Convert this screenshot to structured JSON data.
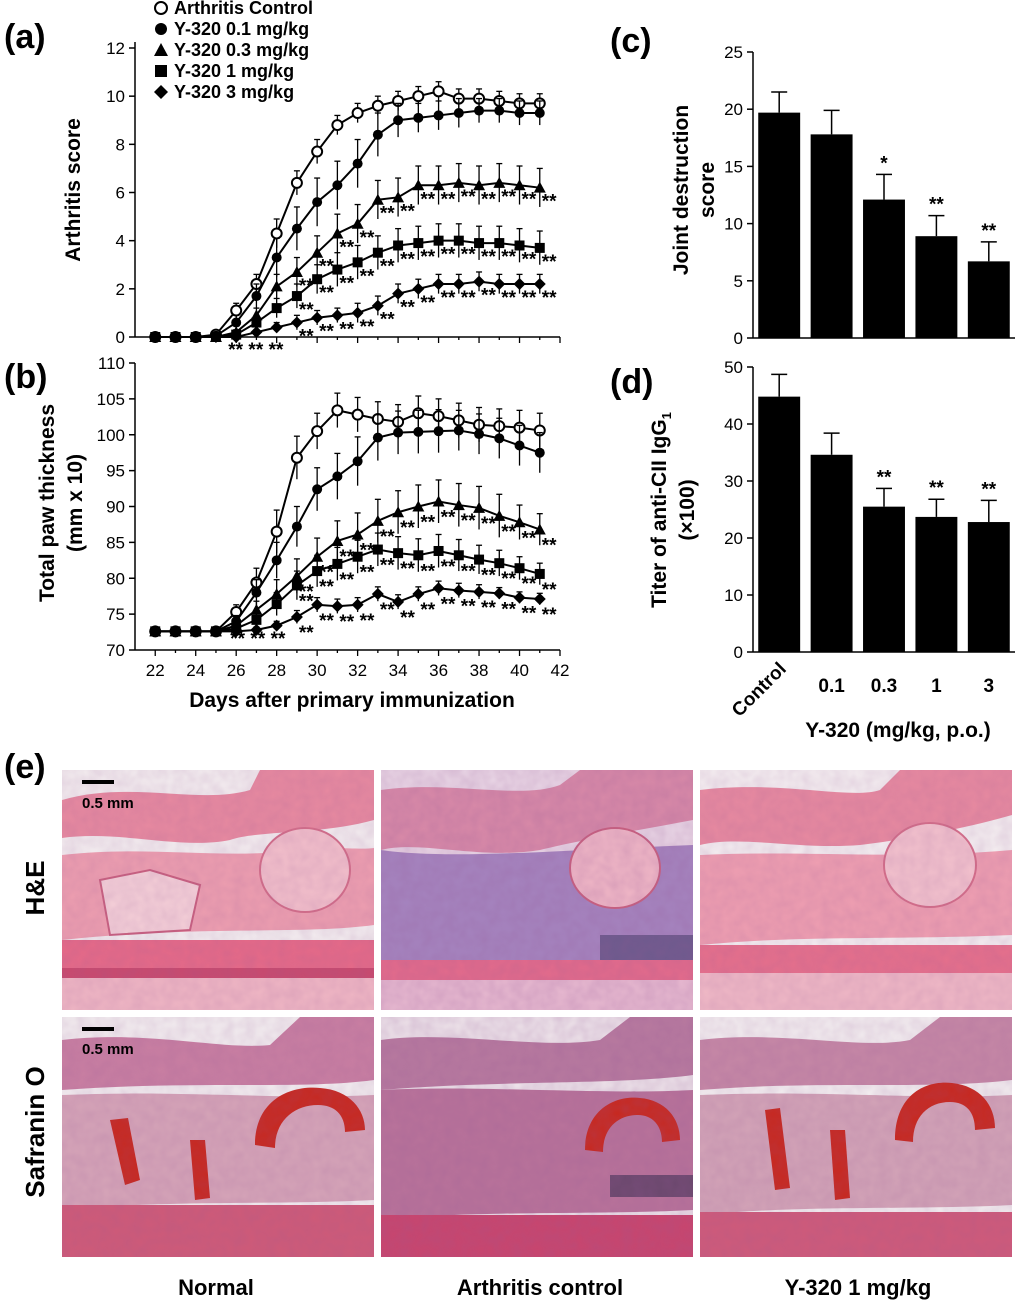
{
  "chart_data": [
    {
      "panel": "(a)",
      "type": "line",
      "ylabel": "Arthritis score",
      "xlabel": "",
      "xlim": [
        21,
        42
      ],
      "ylim": [
        0,
        12
      ],
      "yticks": [
        0,
        2,
        4,
        6,
        8,
        10,
        12
      ],
      "x": [
        22,
        23,
        24,
        25,
        26,
        27,
        28,
        29,
        30,
        31,
        32,
        33,
        34,
        35,
        36,
        37,
        38,
        39,
        40,
        41
      ],
      "series": [
        {
          "name": "Arthritis Control",
          "marker": "open-circle",
          "values": [
            0,
            0,
            0,
            0.1,
            1.1,
            2.2,
            4.3,
            6.4,
            7.7,
            8.8,
            9.3,
            9.6,
            9.8,
            10.0,
            10.2,
            9.9,
            9.9,
            9.8,
            9.7,
            9.7
          ],
          "errors": [
            0,
            0,
            0,
            0.1,
            0.3,
            0.4,
            0.6,
            0.5,
            0.5,
            0.4,
            0.4,
            0.4,
            0.4,
            0.4,
            0.4,
            0.4,
            0.4,
            0.4,
            0.4,
            0.4
          ]
        },
        {
          "name": "Y-320  0.1 mg/kg",
          "marker": "filled-circle",
          "values": [
            0,
            0,
            0,
            0.05,
            0.6,
            1.7,
            3.3,
            4.5,
            5.6,
            6.3,
            7.2,
            8.4,
            9.0,
            9.1,
            9.2,
            9.3,
            9.4,
            9.4,
            9.3,
            9.3
          ],
          "errors": [
            0,
            0,
            0,
            0.05,
            0.3,
            0.5,
            0.8,
            0.9,
            1.0,
            1.0,
            1.0,
            0.9,
            0.7,
            0.6,
            0.6,
            0.6,
            0.5,
            0.5,
            0.5,
            0.5
          ]
        },
        {
          "name": "Y-320  0.3 mg/kg",
          "marker": "filled-triangle",
          "values": [
            0,
            0,
            0,
            0,
            0.2,
            0.9,
            2.1,
            2.7,
            3.5,
            4.3,
            4.7,
            5.7,
            5.8,
            6.3,
            6.3,
            6.4,
            6.3,
            6.4,
            6.3,
            6.2
          ],
          "errors": [
            0,
            0,
            0,
            0,
            0.1,
            0.3,
            0.5,
            0.6,
            0.7,
            0.8,
            0.8,
            0.8,
            0.8,
            0.8,
            0.8,
            0.8,
            0.8,
            0.8,
            0.8,
            0.8
          ]
        },
        {
          "name": "Y-320  1    mg/kg",
          "marker": "filled-square",
          "values": [
            0,
            0,
            0,
            0,
            0.1,
            0.6,
            1.2,
            1.7,
            2.4,
            2.8,
            3.1,
            3.5,
            3.8,
            3.9,
            4.0,
            4.0,
            3.9,
            3.9,
            3.8,
            3.7
          ],
          "errors": [
            0,
            0,
            0,
            0,
            0.1,
            0.2,
            0.4,
            0.5,
            0.6,
            0.7,
            0.7,
            0.7,
            0.7,
            0.7,
            0.7,
            0.7,
            0.7,
            0.7,
            0.7,
            0.7
          ]
        },
        {
          "name": "Y-320  3    mg/kg",
          "marker": "filled-diamond",
          "values": [
            0,
            0,
            0,
            0,
            0,
            0.2,
            0.4,
            0.6,
            0.8,
            0.9,
            1.0,
            1.3,
            1.8,
            2.0,
            2.2,
            2.2,
            2.3,
            2.2,
            2.2,
            2.2
          ],
          "errors": [
            0,
            0,
            0,
            0,
            0,
            0.1,
            0.2,
            0.3,
            0.3,
            0.3,
            0.4,
            0.4,
            0.4,
            0.4,
            0.4,
            0.4,
            0.4,
            0.4,
            0.4,
            0.4
          ]
        }
      ],
      "grid": false,
      "legend": "top-left"
    },
    {
      "panel": "(b)",
      "type": "line",
      "ylabel": "Total paw thickness (mm x 10)",
      "xlabel": "Days after primary immunization",
      "xlim": [
        21,
        42
      ],
      "ylim": [
        70,
        110
      ],
      "yticks": [
        70,
        75,
        80,
        85,
        90,
        95,
        100,
        105,
        110
      ],
      "xticks": [
        22,
        24,
        26,
        28,
        30,
        32,
        34,
        36,
        38,
        40,
        42
      ],
      "x": [
        22,
        23,
        24,
        25,
        26,
        27,
        28,
        29,
        30,
        31,
        32,
        33,
        34,
        35,
        36,
        37,
        38,
        39,
        40,
        41
      ],
      "series": [
        {
          "name": "Arthritis Control",
          "marker": "open-circle",
          "values": [
            72.6,
            72.6,
            72.6,
            72.6,
            75.3,
            79.4,
            86.5,
            96.8,
            100.5,
            103.4,
            102.8,
            102.2,
            101.8,
            103.0,
            102.6,
            102.0,
            101.4,
            101.2,
            101.0,
            100.6
          ],
          "errors": [
            0.3,
            0.3,
            0.3,
            0.3,
            1.0,
            2.0,
            3.0,
            3.0,
            2.5,
            2.4,
            2.4,
            2.4,
            2.4,
            2.4,
            2.4,
            2.4,
            2.4,
            2.4,
            2.4,
            2.4
          ]
        },
        {
          "name": "Y-320  0.1 mg/kg",
          "marker": "filled-circle",
          "values": [
            72.6,
            72.6,
            72.6,
            72.6,
            74.0,
            78.0,
            82.5,
            87.2,
            92.4,
            94.2,
            96.3,
            99.6,
            100.3,
            100.4,
            100.5,
            100.6,
            100.1,
            99.5,
            98.5,
            97.5
          ],
          "errors": [
            0.3,
            0.3,
            0.3,
            0.3,
            0.8,
            1.8,
            2.5,
            2.8,
            3.0,
            3.2,
            3.4,
            3.2,
            3.0,
            3.0,
            3.0,
            2.8,
            2.8,
            2.8,
            2.8,
            2.8
          ]
        },
        {
          "name": "Y-320  0.3 mg/kg",
          "marker": "filled-triangle",
          "values": [
            72.6,
            72.6,
            72.6,
            72.6,
            73.4,
            75.6,
            77.8,
            80.3,
            83.0,
            85.2,
            86.1,
            88.0,
            89.2,
            90.0,
            90.7,
            90.2,
            89.8,
            88.7,
            87.8,
            86.8
          ],
          "errors": [
            0.3,
            0.3,
            0.3,
            0.3,
            0.6,
            1.2,
            2.0,
            2.4,
            2.6,
            2.8,
            3.0,
            3.0,
            3.0,
            3.0,
            3.0,
            3.0,
            3.0,
            3.0,
            2.4,
            2.2
          ]
        },
        {
          "name": "Y-320  1    mg/kg",
          "marker": "filled-square",
          "values": [
            72.6,
            72.6,
            72.6,
            72.6,
            73.0,
            74.2,
            76.4,
            79.0,
            81.0,
            82.0,
            83.0,
            84.0,
            83.5,
            83.2,
            83.8,
            83.2,
            82.6,
            82.1,
            81.4,
            80.6
          ],
          "errors": [
            0.3,
            0.3,
            0.3,
            0.3,
            0.5,
            1.0,
            1.6,
            2.0,
            2.2,
            2.3,
            2.3,
            2.3,
            2.3,
            2.3,
            2.3,
            2.2,
            2.0,
            1.8,
            1.6,
            1.5
          ]
        },
        {
          "name": "Y-320  3    mg/kg",
          "marker": "filled-diamond",
          "values": [
            72.6,
            72.6,
            72.6,
            72.6,
            72.6,
            72.8,
            73.4,
            74.6,
            76.3,
            76.1,
            76.3,
            77.8,
            76.7,
            77.8,
            78.6,
            78.3,
            78.1,
            77.9,
            77.3,
            77.1
          ],
          "errors": [
            0.3,
            0.3,
            0.3,
            0.3,
            0.3,
            0.4,
            0.6,
            0.9,
            1.0,
            1.0,
            1.0,
            1.0,
            1.0,
            1.0,
            1.0,
            1.0,
            1.0,
            0.8,
            0.8,
            0.8
          ]
        }
      ],
      "grid": false
    },
    {
      "panel": "(c)",
      "type": "bar",
      "ylabel": "Joint destruction score",
      "categories": [
        "Control",
        "0.1",
        "0.3",
        "1",
        "3"
      ],
      "values": [
        19.7,
        17.8,
        12.1,
        8.9,
        6.7
      ],
      "errors": [
        1.8,
        2.1,
        2.2,
        1.8,
        1.7
      ],
      "significance": [
        "",
        "",
        "*",
        "**",
        "**"
      ],
      "ylim": [
        0,
        25
      ],
      "yticks": [
        0,
        5,
        10,
        15,
        20,
        25
      ]
    },
    {
      "panel": "(d)",
      "type": "bar",
      "ylabel": "Titer of anti-CII IgG1 (×100)",
      "categories": [
        "Control",
        "0.1",
        "0.3",
        "1",
        "3"
      ],
      "values": [
        44.8,
        34.6,
        25.5,
        23.7,
        22.8
      ],
      "errors": [
        3.9,
        3.8,
        3.2,
        3.1,
        3.8
      ],
      "significance": [
        "",
        "",
        "**",
        "**",
        "**"
      ],
      "ylim": [
        0,
        50
      ],
      "yticks": [
        0,
        10,
        20,
        30,
        40,
        50
      ],
      "xlabel": "Y-320 (mg/kg, p.o.)"
    }
  ],
  "labels": {
    "panel_a": "(a)",
    "panel_b": "(b)",
    "panel_c": "(c)",
    "panel_d": "(d)",
    "panel_e": "(e)",
    "ylabel_a": "Arthritis score",
    "ylabel_b_line1": "Total paw thickness",
    "ylabel_b_line2": "(mm x 10)",
    "xlabel_b": "Days after primary immunization",
    "ylabel_c_line1": "Joint destruction",
    "ylabel_c_line2": "score",
    "ylabel_d_line1": "Titer of anti-CII IgG",
    "ylabel_d_sub": "1",
    "ylabel_d_line2": "(×100)",
    "xlabel_cd": "Y-320 (mg/kg, p.o.)",
    "sig_single": "*",
    "sig_double": "**"
  },
  "histology": {
    "row_labels": [
      "H&E",
      "Safranin O"
    ],
    "column_labels": [
      "Normal",
      "Arthritis control",
      "Y-320 1 mg/kg"
    ],
    "scale_bar": "0.5 mm"
  },
  "colors": {
    "ink": "#000000",
    "he_tissue": "#e07a90",
    "he_dense": "#c83d63",
    "he_inflamed": "#8a6aa8",
    "saf_tissue": "#c26a8a",
    "saf_cartilage": "#c8281e",
    "background_slide": "#f3eef0"
  }
}
